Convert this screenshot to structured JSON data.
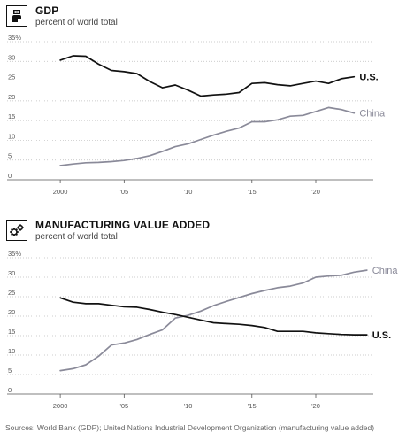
{
  "footer": {
    "sources": "Sources: World Bank (GDP); United Nations Industrial Development Organization (manufacturing value added)"
  },
  "chart_data": [
    {
      "type": "line",
      "title": "GDP",
      "subtitle": "percent of world total",
      "icon": "money-hand-icon",
      "ylim": [
        0,
        35
      ],
      "yticks": [
        0,
        5,
        10,
        15,
        20,
        25,
        30
      ],
      "ytick_labels": [
        "0",
        "5",
        "10",
        "15",
        "20",
        "25",
        "30"
      ],
      "ytop_label": "35%",
      "xlim": [
        1997.5,
        2024.5
      ],
      "xticks": [
        2000,
        2005,
        2010,
        2015,
        2020
      ],
      "xtick_labels": [
        "2000",
        "'05",
        "'10",
        "'15",
        "'20"
      ],
      "grid": true,
      "x": [
        2000,
        2001,
        2002,
        2003,
        2004,
        2005,
        2006,
        2007,
        2008,
        2009,
        2010,
        2011,
        2012,
        2013,
        2014,
        2015,
        2016,
        2017,
        2018,
        2019,
        2020,
        2021,
        2022,
        2023
      ],
      "series": [
        {
          "name": "U.S.",
          "color": "#111111",
          "values": [
            30.3,
            31.4,
            31.3,
            29.3,
            27.7,
            27.4,
            26.9,
            24.9,
            23.3,
            24.0,
            22.7,
            21.2,
            21.5,
            21.7,
            22.1,
            24.4,
            24.6,
            24.1,
            23.8,
            24.4,
            25.0,
            24.4,
            25.6,
            26.1
          ]
        },
        {
          "name": "China",
          "color": "#8a8a99",
          "values": [
            3.6,
            4.0,
            4.3,
            4.4,
            4.6,
            4.9,
            5.4,
            6.1,
            7.2,
            8.4,
            9.1,
            10.2,
            11.3,
            12.3,
            13.1,
            14.7,
            14.7,
            15.2,
            16.1,
            16.3,
            17.3,
            18.3,
            17.8,
            16.9
          ]
        }
      ]
    },
    {
      "type": "line",
      "title": "MANUFACTURING VALUE ADDED",
      "subtitle": "percent of world total",
      "icon": "gears-icon",
      "ylim": [
        0,
        35
      ],
      "yticks": [
        0,
        5,
        10,
        15,
        20,
        25,
        30
      ],
      "ytick_labels": [
        "0",
        "5",
        "10",
        "15",
        "20",
        "25",
        "30"
      ],
      "ytop_label": "35%",
      "xlim": [
        1997.5,
        2024.5
      ],
      "xticks": [
        2000,
        2005,
        2010,
        2015,
        2020
      ],
      "xtick_labels": [
        "2000",
        "'05",
        "'10",
        "'15",
        "'20"
      ],
      "grid": true,
      "x": [
        2000,
        2001,
        2002,
        2003,
        2004,
        2005,
        2006,
        2007,
        2008,
        2009,
        2010,
        2011,
        2012,
        2013,
        2014,
        2015,
        2016,
        2017,
        2018,
        2019,
        2020,
        2021,
        2022,
        2023,
        2024
      ],
      "series": [
        {
          "name": "China",
          "color": "#8a8a99",
          "values": [
            6.0,
            6.5,
            7.5,
            9.7,
            12.6,
            13.1,
            14.0,
            15.3,
            16.5,
            19.5,
            20.2,
            21.3,
            22.7,
            23.8,
            24.8,
            25.8,
            26.6,
            27.3,
            27.7,
            28.5,
            30.0,
            30.3,
            30.5,
            31.3,
            31.8
          ]
        },
        {
          "name": "U.S.",
          "color": "#111111",
          "values": [
            24.7,
            23.6,
            23.2,
            23.2,
            22.8,
            22.4,
            22.3,
            21.7,
            21.0,
            20.4,
            19.7,
            19.0,
            18.3,
            18.1,
            17.9,
            17.6,
            17.1,
            16.1,
            16.1,
            16.1,
            15.7,
            15.5,
            15.3,
            15.2,
            15.2
          ]
        }
      ]
    }
  ]
}
